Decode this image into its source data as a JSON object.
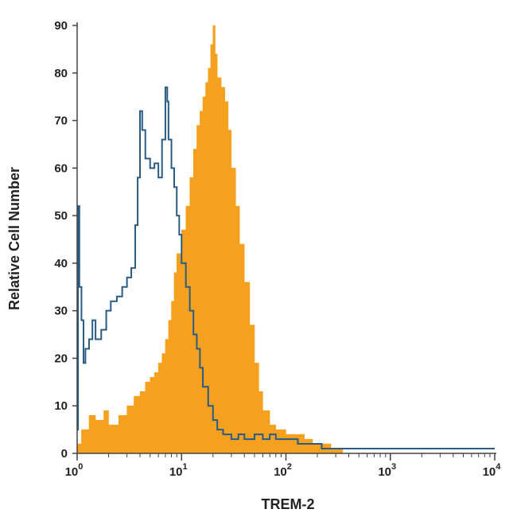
{
  "chart_data": {
    "type": "area",
    "title": "",
    "xlabel": "TREM-2",
    "ylabel": "Relative Cell Number",
    "x_scale": "log",
    "xlim": [
      1,
      10000
    ],
    "ylim": [
      0,
      90
    ],
    "x_ticks": [
      {
        "value": 1,
        "base": "10",
        "exp": "0"
      },
      {
        "value": 10,
        "base": "10",
        "exp": "1"
      },
      {
        "value": 100,
        "base": "10",
        "exp": "2"
      },
      {
        "value": 1000,
        "base": "10",
        "exp": "3"
      },
      {
        "value": 10000,
        "base": "10",
        "exp": "4"
      }
    ],
    "y_ticks": [
      "0",
      "10",
      "20",
      "30",
      "40",
      "50",
      "60",
      "70",
      "80",
      "90"
    ],
    "grid": false,
    "series": [
      {
        "style": "filled-histogram",
        "color": "#f5a01f",
        "x": [
          1.0,
          1.1,
          1.3,
          1.5,
          1.8,
          2.0,
          2.5,
          3.0,
          3.5,
          4.0,
          4.5,
          5.0,
          5.5,
          6.0,
          6.5,
          7.0,
          7.5,
          8.0,
          8.5,
          9.0,
          10.0,
          11.0,
          12.0,
          13.0,
          14.0,
          15.0,
          16.0,
          17.0,
          18.0,
          19.0,
          20.0,
          21.0,
          22.0,
          24.0,
          26.0,
          28.0,
          30.0,
          33.0,
          36.0,
          40.0,
          45.0,
          50.0,
          55.0,
          60.0,
          70.0,
          80.0,
          100.0,
          120.0,
          150.0,
          180.0,
          220.0,
          270.0,
          330.0,
          350.0
        ],
        "y": [
          2,
          5,
          8,
          7,
          9,
          6,
          8,
          10,
          12,
          13,
          15,
          16,
          17,
          19,
          21,
          24,
          28,
          32,
          38,
          42,
          47,
          52,
          58,
          64,
          69,
          72,
          75,
          78,
          81,
          86,
          90,
          84,
          79,
          77,
          74,
          68,
          60,
          52,
          44,
          36,
          27,
          19,
          13,
          9,
          6,
          5,
          4,
          4,
          3,
          2,
          2,
          1,
          1,
          0
        ]
      },
      {
        "style": "line",
        "color": "#2a5b83",
        "x": [
          1.0,
          1.02,
          1.05,
          1.1,
          1.15,
          1.2,
          1.3,
          1.4,
          1.5,
          1.7,
          1.9,
          2.1,
          2.4,
          2.7,
          3.0,
          3.3,
          3.6,
          3.8,
          4.0,
          4.2,
          4.5,
          5.0,
          5.5,
          6.0,
          6.5,
          7.0,
          7.3,
          7.5,
          8.0,
          8.5,
          9.0,
          9.5,
          10.0,
          11.0,
          12.0,
          13.0,
          14.0,
          15.0,
          16.0,
          18.0,
          20.0,
          22.0,
          25.0,
          30.0,
          35.0,
          40.0,
          50.0,
          60.0,
          70.0,
          80.0,
          100.0,
          130.0,
          170.0,
          220.0,
          300.0,
          10000.0
        ],
        "y": [
          5,
          52,
          35,
          28,
          19,
          22,
          24,
          28,
          24,
          26,
          30,
          32,
          33,
          35,
          37,
          39,
          48,
          58,
          72,
          68,
          62,
          60,
          61,
          58,
          66,
          77,
          74,
          66,
          60,
          56,
          50,
          46,
          40,
          35,
          30,
          25,
          22,
          18,
          14,
          10,
          7,
          5,
          4,
          3,
          4,
          3,
          4,
          3,
          4,
          3,
          3,
          2,
          2,
          1,
          1,
          1
        ]
      }
    ]
  }
}
